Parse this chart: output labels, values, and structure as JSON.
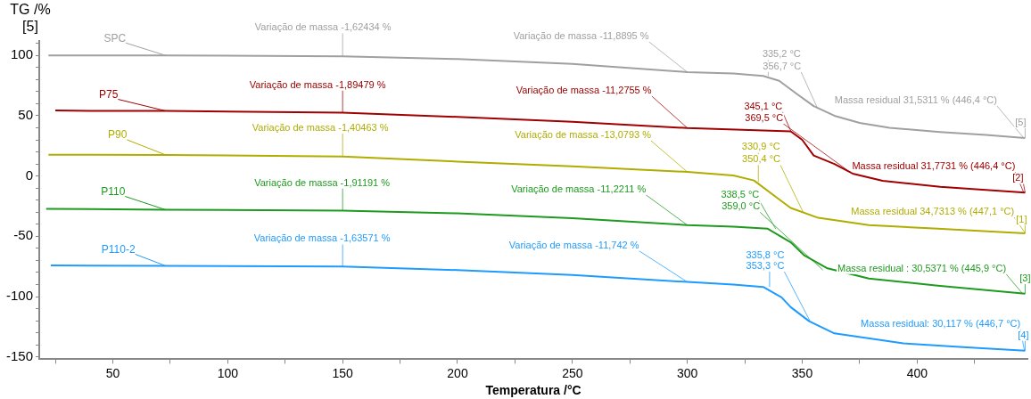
{
  "chart_data": {
    "type": "line",
    "xlabel": "Temperatura /°C",
    "ylabel": "TG /%",
    "xlim": [
      18,
      448
    ],
    "ylim": [
      -152,
      112
    ],
    "xticks": [
      {
        "value": 25,
        "label": null
      },
      50,
      {
        "value": 75,
        "label": null
      },
      100,
      {
        "value": 125,
        "label": null
      },
      150,
      {
        "value": 175,
        "label": null
      },
      200,
      {
        "value": 225,
        "label": null
      },
      250,
      {
        "value": 275,
        "label": null
      },
      300,
      {
        "value": 325,
        "label": null
      },
      350,
      {
        "value": 375,
        "label": null
      },
      400,
      {
        "value": 425,
        "label": null
      }
    ],
    "yticks": [
      -150,
      {
        "value": -140,
        "label": null
      },
      {
        "value": -130,
        "label": null
      },
      {
        "value": -120,
        "label": null
      },
      {
        "value": -110,
        "label": null
      },
      -100,
      {
        "value": -90,
        "label": null
      },
      {
        "value": -80,
        "label": null
      },
      {
        "value": -70,
        "label": null
      },
      {
        "value": -60,
        "label": null
      },
      -50,
      {
        "value": -40,
        "label": null
      },
      {
        "value": -30,
        "label": null
      },
      {
        "value": -20,
        "label": null
      },
      {
        "value": -10,
        "label": null
      },
      0,
      {
        "value": 10,
        "label": null
      },
      {
        "value": 20,
        "label": null
      },
      {
        "value": 30,
        "label": null
      },
      {
        "value": 40,
        "label": null
      },
      50,
      {
        "value": 60,
        "label": null
      },
      {
        "value": 70,
        "label": null
      },
      {
        "value": 80,
        "label": null
      },
      {
        "value": 90,
        "label": null
      },
      100,
      {
        "value": 110,
        "label": null
      }
    ],
    "grid": false,
    "legend": false,
    "marker": "none",
    "line_style": "solid",
    "series": [
      {
        "name": "SPC",
        "color": "#a0a0a0",
        "x": [
          22,
          40,
          73,
          150,
          200,
          250,
          300,
          320,
          333,
          340,
          347,
          355,
          364,
          375,
          388,
          410,
          430,
          447
        ],
        "values": [
          100,
          100,
          100,
          99.3,
          97,
          93,
          86.2,
          85,
          83,
          79,
          69,
          58,
          50,
          44,
          40,
          36.5,
          34,
          31.5
        ]
      },
      {
        "name": "P75",
        "color": "#a00000",
        "x": [
          25,
          40,
          73,
          150,
          200,
          250,
          300,
          330,
          345,
          350,
          355,
          364,
          372,
          385,
          410,
          447
        ],
        "values": [
          54.3,
          54,
          54,
          52.5,
          49,
          45,
          39.8,
          38,
          37,
          30,
          17,
          10,
          2,
          -4,
          -9,
          -13.8
        ]
      },
      {
        "name": "P90",
        "color": "#b0ad00",
        "x": [
          22,
          40,
          73,
          150,
          200,
          250,
          300,
          320,
          329,
          339,
          345,
          357,
          379,
          409,
          447
        ],
        "values": [
          17.7,
          17.7,
          17.5,
          16.2,
          12,
          8,
          3.4,
          0.5,
          -3.7,
          -18,
          -26.5,
          -34.7,
          -40.7,
          -43.7,
          -47.5
        ]
      },
      {
        "name": "P110",
        "color": "#1e9a1e",
        "x": [
          21,
          40,
          73,
          150,
          200,
          250,
          300,
          320,
          335,
          345,
          351,
          361,
          379,
          409,
          447
        ],
        "values": [
          -27.2,
          -27.5,
          -28,
          -28.7,
          -31,
          -35,
          -40.7,
          -42,
          -43.7,
          -55,
          -66,
          -76.6,
          -85,
          -91,
          -97.6
        ]
      },
      {
        "name": "P110-2",
        "color": "#1e9bff",
        "x": [
          23,
          40,
          73,
          150,
          200,
          250,
          300,
          320,
          333,
          341,
          345,
          353,
          364,
          394,
          420,
          447
        ],
        "values": [
          -74.2,
          -74.3,
          -74.5,
          -75.1,
          -78,
          -82,
          -87.9,
          -90,
          -92,
          -100.6,
          -108.8,
          -120.4,
          -130.5,
          -138.8,
          -142,
          -144.8
        ]
      }
    ],
    "annotations": [
      "[5]",
      {
        "text": "Variação de massa -1,62434 %",
        "x": 150,
        "y": 99.3
      },
      {
        "text": "Variação de massa -11,8895 %",
        "x": 300,
        "y": 86.2
      },
      {
        "text": "335,2 °C",
        "x": 335.2,
        "y": 83
      },
      {
        "text": "356,7 °C",
        "x": 356.7,
        "y": 56
      },
      {
        "text": "Massa residual 31,5311 % (446,4 °C)",
        "x": 446.4,
        "y": 31.5
      },
      {
        "text": "[5]",
        "x": 447,
        "y": 31.5
      },
      {
        "text": "Variação de massa -1,89479 %",
        "x": 150,
        "y": 52.5
      },
      {
        "text": "Variação de massa -11,2755 %",
        "x": 300,
        "y": 39.8
      },
      {
        "text": "345,1 °C",
        "x": 345.1,
        "y": 37
      },
      {
        "text": "369,5 °C",
        "x": 369.5,
        "y": 5
      },
      {
        "text": "Massa residual 31,7731 % (446,4 °C)",
        "x": 446.4,
        "y": -13.8
      },
      {
        "text": "[2]",
        "x": 447,
        "y": -13.8
      },
      {
        "text": "Variação de massa -1,40463 %",
        "x": 150,
        "y": 16.2
      },
      {
        "text": "Variação de massa -13,0793 %",
        "x": 300,
        "y": 3.4
      },
      {
        "text": "330,9 °C",
        "x": 330.9,
        "y": -5
      },
      {
        "text": "350,4 °C",
        "x": 350.4,
        "y": -30
      },
      {
        "text": "Massa residual 34,7313 % (447,1 °C)",
        "x": 447.1,
        "y": -47.5
      },
      {
        "text": "[1]",
        "x": 447,
        "y": -47.5
      },
      {
        "text": "Variação de massa -1,91191 %",
        "x": 150,
        "y": -28.7
      },
      {
        "text": "Variação de massa -11,2211 %",
        "x": 300,
        "y": -40.7
      },
      {
        "text": "338,5 °C",
        "x": 338.5,
        "y": -44
      },
      {
        "text": "359,0 °C",
        "x": 359,
        "y": -78
      },
      {
        "text": "Massa residual : 30,5371 % (445,9 °C)",
        "x": 445.9,
        "y": -97.6
      },
      {
        "text": "[3]",
        "x": 447,
        "y": -97.6
      },
      {
        "text": "Variação de massa -1,63571 %",
        "x": 150,
        "y": -75.1
      },
      {
        "text": "Variação de massa -11,742 %",
        "x": 300,
        "y": -87.9
      },
      {
        "text": "335,8 °C",
        "x": 335.8,
        "y": -92
      },
      {
        "text": "353,3 °C",
        "x": 353.3,
        "y": -120
      },
      {
        "text": "Massa residual: 30,117 % (446,7 °C)",
        "x": 446.7,
        "y": -144.8
      },
      {
        "text": "[4]",
        "x": 447,
        "y": -144.8
      }
    ]
  }
}
